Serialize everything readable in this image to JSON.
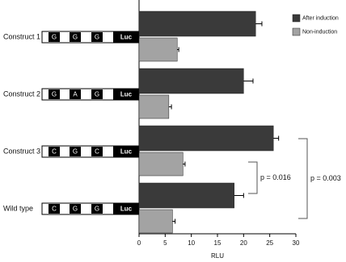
{
  "chart_data": {
    "type": "bar",
    "orientation": "horizontal",
    "categories": [
      "Construct 1",
      "Construct 2",
      "Construct 3",
      "Wild type"
    ],
    "constructs": [
      [
        "G",
        "G",
        "G",
        "Luc"
      ],
      [
        "G",
        "A",
        "G",
        "Luc"
      ],
      [
        "C",
        "G",
        "C",
        "Luc"
      ],
      [
        "C",
        "G",
        "G",
        "Luc"
      ]
    ],
    "series": [
      {
        "name": "After induction",
        "color": "#3a3a3a",
        "values": [
          22.3,
          20.0,
          25.7,
          18.2
        ],
        "errors": [
          1.2,
          1.8,
          1.0,
          1.8
        ]
      },
      {
        "name": "Non-induction",
        "color": "#a3a3a3",
        "values": [
          7.3,
          5.7,
          8.4,
          6.4
        ],
        "errors": [
          0.3,
          0.5,
          0.4,
          0.5
        ]
      }
    ],
    "xlim": [
      0,
      30
    ],
    "xticks": [
      0,
      5,
      10,
      15,
      20,
      25,
      30
    ],
    "xlabel": "RLU",
    "annotations": [
      "p = 0.016",
      "p = 0.003"
    ]
  }
}
